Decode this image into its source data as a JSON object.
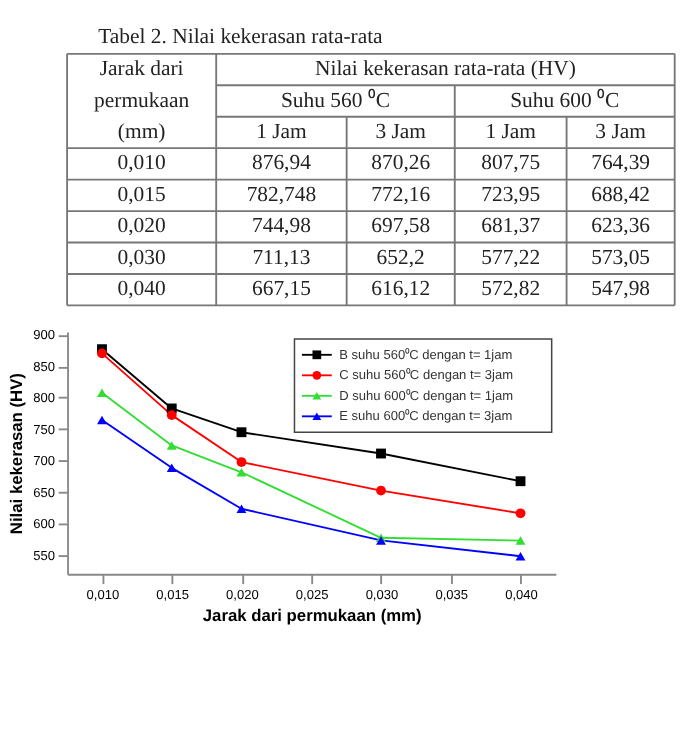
{
  "chart_data": [
    {
      "type": "other",
      "title": "Tabel 2.  Nilai kekerasan rata-rata",
      "annotations": [
        "Jarak dari permukaan (mm)",
        "Nilai kekerasan rata-rata (HV)",
        "Suhu 560 ⁰C",
        "Suhu 600 ⁰C",
        "1 Jam",
        "3 Jam",
        "1 Jam",
        "3 Jam",
        "0,010",
        "876,94",
        "870,26",
        "807,75",
        "764,39",
        "0,015",
        "782,748",
        "772,16",
        "723,95",
        "688,42",
        "0,020",
        "744,98",
        "697,58",
        "681,37",
        "623,36",
        "0,030",
        "711,13",
        "652,2",
        "577,22",
        "573,05",
        "0,040",
        "667,15",
        "616,12",
        "572,82",
        "547,98"
      ]
    },
    {
      "type": "line",
      "xlabel": "Jarak dari permukaan (mm)",
      "ylabel": "Nilai kekerasan (HV)",
      "x": [
        0.01,
        0.015,
        0.02,
        0.03,
        0.04
      ],
      "series": [
        {
          "name": "B suhu 560⁰C dengan t= 1jam",
          "color": "#000000",
          "marker": "square",
          "values": [
            876.94,
            782.748,
            744.98,
            711.13,
            667.15
          ]
        },
        {
          "name": "C suhu 560⁰C dengan t= 3jam",
          "color": "#ff0000",
          "marker": "circle",
          "values": [
            870.26,
            772.16,
            697.58,
            652.2,
            616.12
          ]
        },
        {
          "name": "D suhu 600⁰C dengan t= 1jam",
          "color": "#33dd33",
          "marker": "triangle",
          "values": [
            807.75,
            723.95,
            681.37,
            577.22,
            572.82
          ]
        },
        {
          "name": "E suhu 600⁰C dengan t= 3jam",
          "color": "#0000ff",
          "marker": "triangle",
          "values": [
            764.39,
            688.42,
            623.36,
            573.05,
            547.98
          ]
        }
      ],
      "xlim": [
        0.0075,
        0.0425
      ],
      "ylim": [
        520,
        905
      ],
      "xticks": [
        {
          "value": 0.01,
          "label": "0,010"
        },
        {
          "value": 0.015,
          "label": "0,015"
        },
        {
          "value": 0.02,
          "label": "0,020"
        },
        {
          "value": 0.025,
          "label": "0,025"
        },
        {
          "value": 0.03,
          "label": "0,030"
        },
        {
          "value": 0.035,
          "label": "0,035"
        },
        {
          "value": 0.04,
          "label": "0,040"
        }
      ],
      "yticks": [
        550,
        600,
        650,
        700,
        750,
        800,
        850,
        900
      ],
      "legend": "top right",
      "grid": false,
      "line_style": "solid"
    }
  ]
}
